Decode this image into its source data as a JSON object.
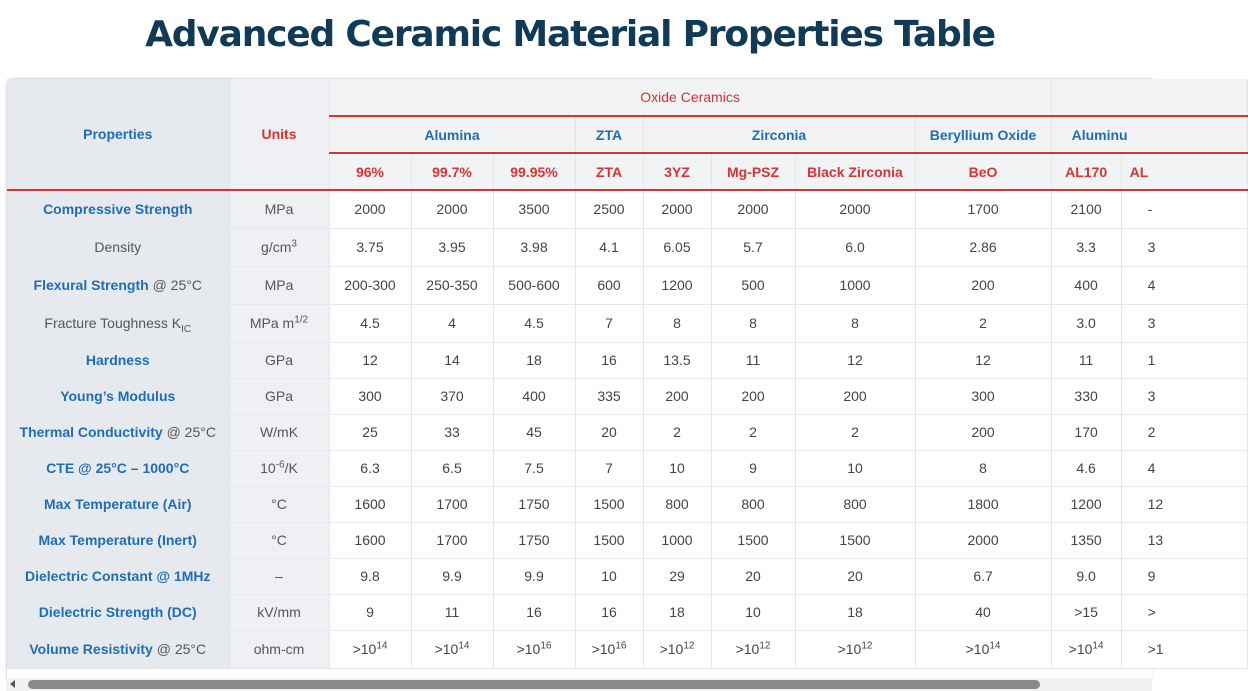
{
  "title": "Advanced Ceramic Material Properties Table",
  "header": {
    "properties": "Properties",
    "units": "Units",
    "group": "Oxide Ceramics",
    "families": [
      "Alumina",
      "ZTA",
      "Zirconia",
      "Beryllium Oxide",
      "Aluminu"
    ],
    "grades": [
      "96%",
      "99.7%",
      "99.95%",
      "ZTA",
      "3YZ",
      "Mg-PSZ",
      "Black Zirconia",
      "BeO",
      "AL170",
      "AL"
    ]
  },
  "rows": [
    {
      "name": "Compressive Strength",
      "note": "",
      "unit": "MPa",
      "values": [
        "2000",
        "2000",
        "3500",
        "2500",
        "2000",
        "2000",
        "2000",
        "1700",
        "2100",
        "-"
      ]
    },
    {
      "name": "Density",
      "note": "",
      "unit_base": "g/cm",
      "unit_sup": "3",
      "values": [
        "3.75",
        "3.95",
        "3.98",
        "4.1",
        "6.05",
        "5.7",
        "6.0",
        "2.86",
        "3.3",
        "3"
      ]
    },
    {
      "name": "Flexural Strength",
      "note": "@ 25°C",
      "unit": "MPa",
      "values": [
        "200-300",
        "250-350",
        "500-600",
        "600",
        "1200",
        "500",
        "1000",
        "200",
        "400",
        "4"
      ]
    },
    {
      "name": "Fracture Toughness K",
      "name_sub": "IC",
      "unit_base": "MPa m",
      "unit_sup": "1/2",
      "values": [
        "4.5",
        "4",
        "4.5",
        "7",
        "8",
        "8",
        "8",
        "2",
        "3.0",
        "3"
      ]
    },
    {
      "name": "Hardness",
      "note": "",
      "unit": "GPa",
      "values": [
        "12",
        "14",
        "18",
        "16",
        "13.5",
        "11",
        "12",
        "12",
        "11",
        "1"
      ]
    },
    {
      "name": "Young’s Modulus",
      "note": "",
      "unit": "GPa",
      "values": [
        "300",
        "370",
        "400",
        "335",
        "200",
        "200",
        "200",
        "300",
        "330",
        "3"
      ]
    },
    {
      "name": "Thermal Conductivity",
      "note": "@ 25°C",
      "unit": "W/mK",
      "values": [
        "25",
        "33",
        "45",
        "20",
        "2",
        "2",
        "2",
        "200",
        "170",
        "2"
      ]
    },
    {
      "name": "CTE @ 25°C – 1000°C",
      "note": "",
      "unit_pre": "10",
      "unit_sup": "-6",
      "unit_post": "/K",
      "values": [
        "6.3",
        "6.5",
        "7.5",
        "7",
        "10",
        "9",
        "10",
        "8",
        "4.6",
        "4"
      ]
    },
    {
      "name": "Max Temperature (Air)",
      "note": "",
      "unit": "°C",
      "values": [
        "1600",
        "1700",
        "1750",
        "1500",
        "800",
        "800",
        "800",
        "1800",
        "1200",
        "12"
      ]
    },
    {
      "name": "Max Temperature (Inert)",
      "note": "",
      "unit": "°C",
      "values": [
        "1600",
        "1700",
        "1750",
        "1500",
        "1000",
        "1500",
        "1500",
        "2000",
        "1350",
        "13"
      ]
    },
    {
      "name": "Dielectric Constant @ 1MHz",
      "note": "",
      "unit": "–",
      "values": [
        "9.8",
        "9.9",
        "9.9",
        "10",
        "29",
        "20",
        "20",
        "6.7",
        "9.0",
        "9"
      ]
    },
    {
      "name": "Dielectric Strength (DC)",
      "note": "",
      "unit": "kV/mm",
      "values": [
        "9",
        "11",
        "16",
        "16",
        "18",
        "10",
        "18",
        "40",
        ">15",
        ">"
      ]
    },
    {
      "name": "Volume Resistivity",
      "note": "@ 25°C",
      "unit": "ohm-cm",
      "res_base": ">10",
      "res_exp": [
        "14",
        "14",
        "16",
        "16",
        "12",
        "12",
        "12",
        "14",
        "14",
        ""
      ],
      "res_tail": ">1"
    }
  ]
}
